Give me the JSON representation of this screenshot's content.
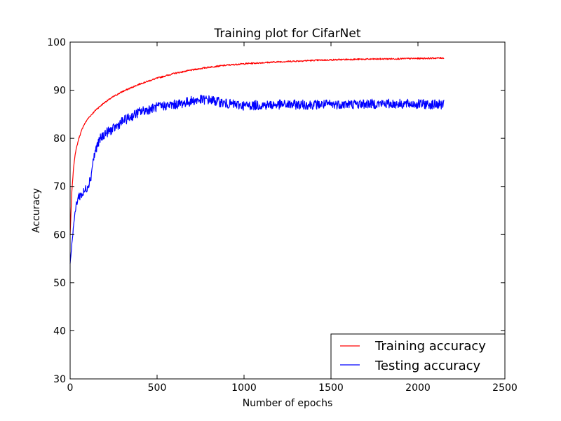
{
  "chart_data": {
    "type": "line",
    "title": "Training plot for CifarNet",
    "xlabel": "Number of epochs",
    "ylabel": "Accuracy",
    "xlim": [
      0,
      2500
    ],
    "ylim": [
      30,
      100
    ],
    "xticks": [
      0,
      500,
      1000,
      1500,
      2000,
      2500
    ],
    "yticks": [
      30,
      40,
      50,
      60,
      70,
      80,
      90,
      100
    ],
    "grid": false,
    "legend_position": "lower-right",
    "series": [
      {
        "name": "Training accuracy",
        "color": "#ff0000",
        "noise": 0.15,
        "x": [
          0,
          10,
          20,
          30,
          50,
          75,
          100,
          150,
          200,
          250,
          300,
          400,
          500,
          600,
          700,
          800,
          900,
          1000,
          1200,
          1400,
          1600,
          1800,
          2000,
          2150
        ],
        "y": [
          60,
          69,
          74,
          77,
          80,
          82.5,
          84,
          86,
          87.5,
          88.7,
          89.7,
          91.3,
          92.5,
          93.5,
          94.2,
          94.8,
          95.2,
          95.5,
          95.9,
          96.2,
          96.4,
          96.5,
          96.6,
          96.7
        ]
      },
      {
        "name": "Testing accuracy",
        "color": "#0000ff",
        "noise": 1.0,
        "x": [
          0,
          10,
          20,
          30,
          40,
          50,
          75,
          100,
          120,
          130,
          150,
          175,
          200,
          250,
          300,
          350,
          400,
          450,
          500,
          550,
          600,
          650,
          700,
          750,
          800,
          850,
          900,
          950,
          1000,
          1100,
          1200,
          1400,
          1600,
          1800,
          2000,
          2150
        ],
        "y": [
          54,
          58,
          62,
          65,
          67,
          68,
          68.5,
          70,
          72,
          75,
          78,
          80,
          81,
          82,
          83.5,
          84.5,
          85.5,
          86,
          86.5,
          86.8,
          87,
          87.3,
          87.8,
          88,
          88,
          87.6,
          87.2,
          87,
          86.8,
          86.9,
          87,
          87,
          87.1,
          87.2,
          87.1,
          87
        ]
      }
    ]
  }
}
